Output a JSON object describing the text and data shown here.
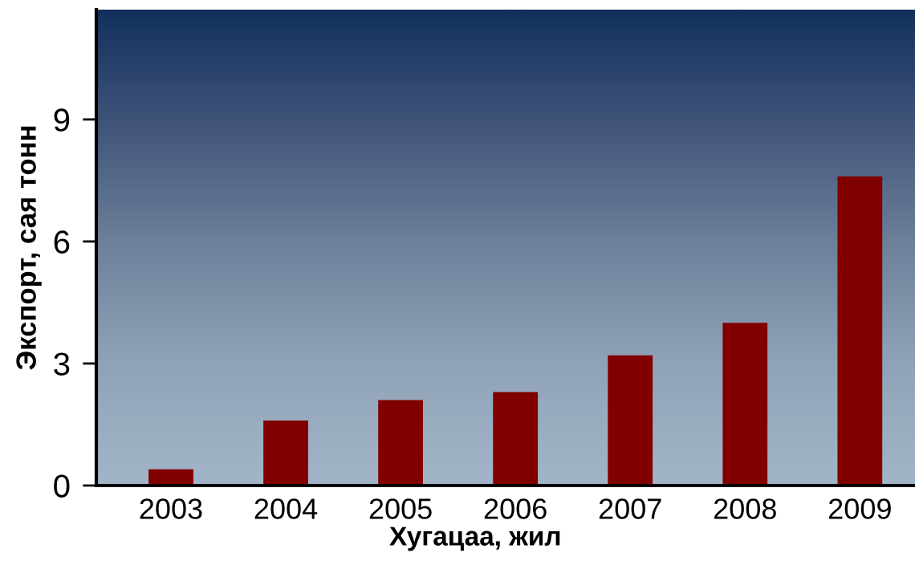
{
  "chart_data": {
    "type": "bar",
    "xlabel": "Хугацаа, жил",
    "ylabel": "Экспорт, сая тонн",
    "categories": [
      "2003",
      "2004",
      "2005",
      "2006",
      "2007",
      "2008",
      "2009"
    ],
    "values": [
      0.4,
      1.6,
      2.1,
      2.3,
      3.2,
      4.0,
      7.6
    ],
    "color": "#800000",
    "ylim": [
      0,
      11.7
    ],
    "yticks": [
      0,
      3,
      6,
      9
    ],
    "grid": false
  }
}
